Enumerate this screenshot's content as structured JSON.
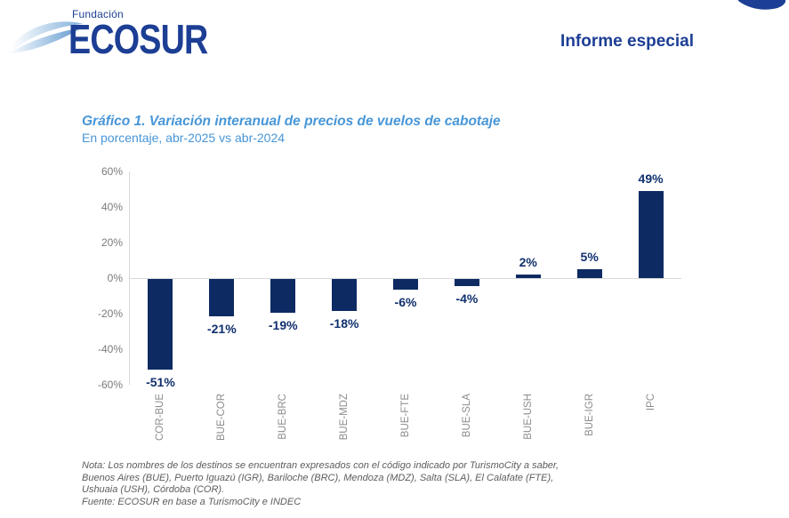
{
  "header": {
    "logo_top": "Fundación",
    "logo_name": "ECOSUR",
    "report_label": "Informe especial"
  },
  "chart": {
    "title": "Gráfico 1. Variación interanual de precios de vuelos de cabotaje",
    "subtitle": "En porcentaje, abr-2025 vs abr-2024"
  },
  "chart_data": {
    "type": "bar",
    "title": "Gráfico 1. Variación interanual de precios de vuelos de cabotaje",
    "subtitle": "En porcentaje, abr-2025 vs abr-2024",
    "categories": [
      "COR-BUE",
      "BUE-COR",
      "BUE-BRC",
      "BUE-MDZ",
      "BUE-FTE",
      "BUE-SLA",
      "BUE-USH",
      "BUE-IGR",
      "IPC"
    ],
    "values": [
      -51,
      -21,
      -19,
      -18,
      -6,
      -4,
      2,
      5,
      49
    ],
    "value_labels": [
      "-51%",
      "-21%",
      "-19%",
      "-18%",
      "-6%",
      "-4%",
      "2%",
      "5%",
      "49%"
    ],
    "xlabel": "",
    "ylabel": "",
    "ylim": [
      -60,
      60
    ],
    "yticks": [
      60,
      40,
      20,
      0,
      -20,
      -40,
      -60
    ],
    "ytick_labels": [
      "60%",
      "40%",
      "20%",
      "0%",
      "-20%",
      "-40%",
      "-60%"
    ],
    "grid": false,
    "legend": false,
    "bar_color": "#0d2a63",
    "value_label_color": "#10306e",
    "axis_line_color": "#d9d9d9"
  },
  "notes": {
    "lines": [
      "Nota: Los nombres de los destinos se encuentran expresados con el código indicado por TurismoCity a saber,",
      "Buenos Aires (BUE), Puerto Iguazú (IGR), Bariloche (BRC), Mendoza (MDZ), Salta (SLA), El Calafate (FTE),",
      "Ushuaia (USH), Córdoba (COR).",
      "Fuente: ECOSUR en base a TurismoCity e INDEC"
    ]
  },
  "colors": {
    "brand_navy": "#1c3e94",
    "bar_navy": "#0d2a63",
    "title_blue": "#4796d8",
    "tick_gray": "#7b7b7b",
    "category_gray": "#8c8c8c",
    "note_gray": "#5d5d5d",
    "axis_gray": "#d9d9d9"
  }
}
